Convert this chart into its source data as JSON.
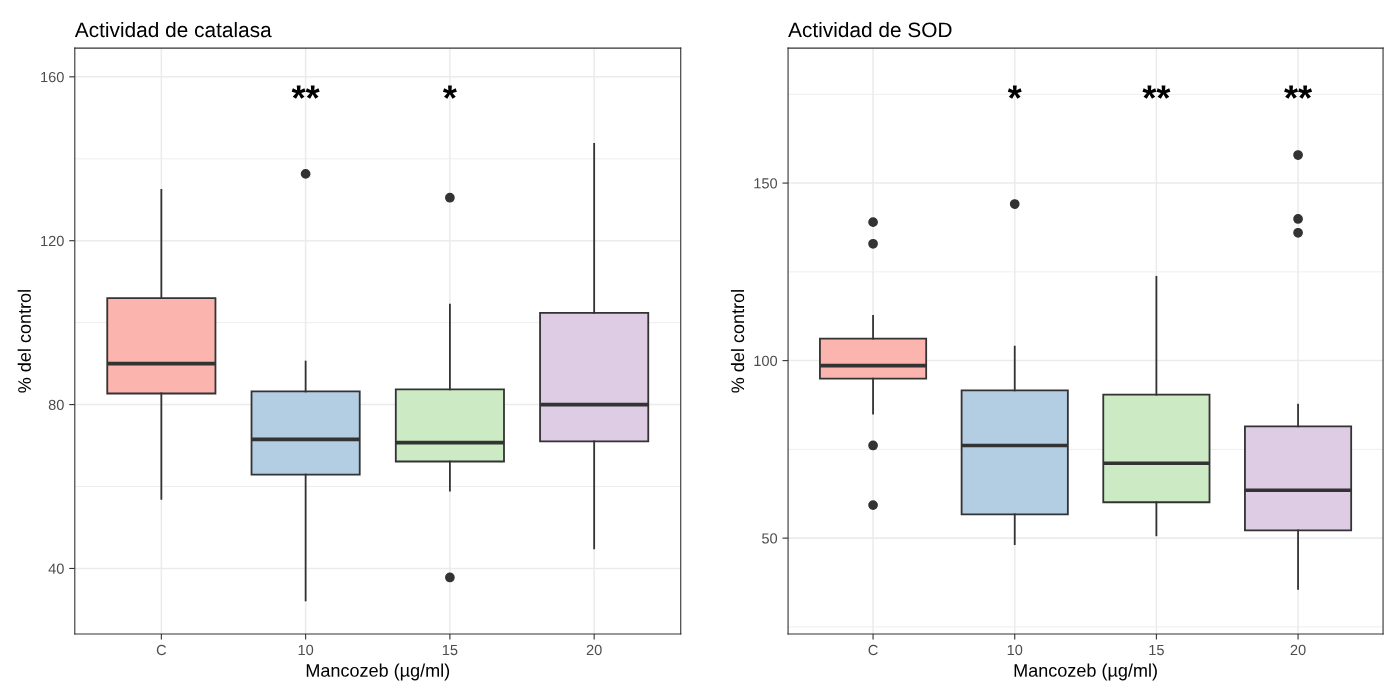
{
  "chart_data": [
    {
      "type": "box",
      "title": "Actividad de catalasa",
      "xlabel": "Mancozeb (µg/ml)",
      "ylabel": "% del control",
      "categories": [
        "C",
        "10",
        "15",
        "20"
      ],
      "colors": [
        "#fbb4ae",
        "#b3cde3",
        "#ccebc5",
        "#decbe4"
      ],
      "ylim": [
        24,
        167
      ],
      "yticks": [
        40,
        80,
        120,
        160
      ],
      "grid": true,
      "boxes": [
        {
          "low": 57,
          "q1": 82.7,
          "median": 90,
          "q3": 106,
          "high": 132.4
        },
        {
          "low": 32.2,
          "q1": 62.9,
          "median": 71.5,
          "q3": 83.2,
          "high": 90.5,
          "outliers": [
            136.3
          ]
        },
        {
          "low": 59,
          "q1": 66.1,
          "median": 70.7,
          "q3": 83.7,
          "high": 104.4,
          "outliers": [
            130.5,
            37.8
          ]
        },
        {
          "low": 44.9,
          "q1": 71,
          "median": 80,
          "q3": 102.4,
          "high": 143.6
        }
      ],
      "annotations": [
        "**",
        "*"
      ]
    },
    {
      "type": "box",
      "title": "Actividad de SOD",
      "xlabel": "Mancozeb (µg/ml)",
      "ylabel": "% del control",
      "categories": [
        "C",
        "10",
        "15",
        "20"
      ],
      "colors": [
        "#fbb4ae",
        "#b3cde3",
        "#ccebc5",
        "#decbe4"
      ],
      "ylim": [
        23,
        188
      ],
      "yticks": [
        50,
        100,
        150
      ],
      "grid": true,
      "boxes": [
        {
          "low": 85.1,
          "q1": 94.9,
          "median": 98.6,
          "q3": 106.2,
          "high": 112.6,
          "outliers": [
            139,
            132.9,
            76.1,
            59.3
          ]
        },
        {
          "low": 48.3,
          "q1": 56.7,
          "median": 76.1,
          "q3": 91.6,
          "high": 103.9,
          "outliers": [
            144.1
          ]
        },
        {
          "low": 50.8,
          "q1": 60.1,
          "median": 71.1,
          "q3": 90.4,
          "high": 123.6
        },
        {
          "low": 35.7,
          "q1": 52.2,
          "median": 63.5,
          "q3": 81.5,
          "high": 87.6,
          "outliers": [
            157.9,
            139.9,
            136
          ]
        }
      ],
      "annotations": [
        "*",
        "**",
        "**"
      ]
    }
  ]
}
